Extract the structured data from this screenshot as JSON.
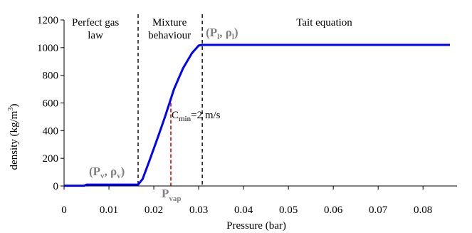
{
  "chart_data": {
    "type": "line",
    "title": "",
    "xlabel": "Pressure (bar)",
    "ylabel": "density (kg/m",
    "ylabel_sup": "3",
    "ylabel_close": ")",
    "xlim": [
      0,
      0.086
    ],
    "ylim": [
      0,
      1200
    ],
    "xticks": [
      0,
      0.01,
      0.02,
      0.03,
      0.04,
      0.05,
      0.06,
      0.07,
      0.08
    ],
    "xtick_labels": [
      "0",
      "0.01",
      "0.02",
      "0.03",
      "0.04",
      "0.05",
      "0.06",
      "0.07",
      "0.08"
    ],
    "yticks": [
      0,
      200,
      400,
      600,
      800,
      1000,
      1200
    ],
    "ytick_labels": [
      "0",
      "200",
      "400",
      "600",
      "800",
      "1000",
      "1200"
    ],
    "grid": false,
    "series": [
      {
        "color": "#0000ff",
        "x": [
          0,
          0.0045,
          0.005,
          0.0165,
          0.0175,
          0.019,
          0.021,
          0.0225,
          0.0245,
          0.0265,
          0.0285,
          0.03,
          0.0308,
          0.086
        ],
        "y": [
          2,
          2,
          10,
          10,
          50,
          180,
          360,
          500,
          700,
          850,
          960,
          1015,
          1020,
          1020
        ]
      }
    ],
    "regions": [
      {
        "label_line1": "Perfect gas",
        "label_line2": "law",
        "x_center": 0.007
      },
      {
        "label_line1": "Mixture",
        "label_line2": "behaviour",
        "x_center": 0.0235
      },
      {
        "label_line1": "Tait equation",
        "label_line2": "",
        "x_center": 0.058
      }
    ],
    "boundaries": [
      {
        "x": 0.0165,
        "style": "dashed",
        "color": "#000000"
      },
      {
        "x": 0.0308,
        "style": "dashed",
        "color": "#000000"
      }
    ],
    "vap_marker": {
      "x": 0.0238,
      "y_top": 600,
      "color": "#e00000"
    },
    "annotations": {
      "pv_rho_v": {
        "pre": "(P",
        "sub1": "v",
        "mid": ", ρ",
        "sub2": "v",
        "post": ")",
        "color": "#808080"
      },
      "pl_rho_l": {
        "pre": "(P",
        "sub1": "l",
        "mid": ", ρ",
        "sub2": "l",
        "post": ")",
        "color": "#808080"
      },
      "p_vap": {
        "main": "P",
        "sub": "vap",
        "color": "#808080"
      },
      "c_min": {
        "main": "C",
        "sub": "min",
        "post": "=2 m/s"
      }
    }
  }
}
